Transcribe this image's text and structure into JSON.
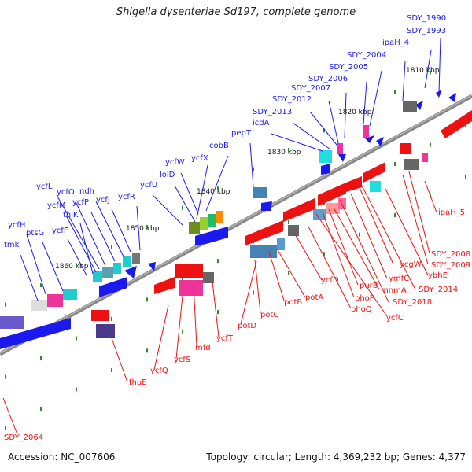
{
  "title": "Shigella dysenteriae Sd197, complete genome",
  "footer": {
    "accession": "Accession: NC_007606",
    "topology": "Topology: circular; Length: 4,369,232 bp; Genes: 4,377"
  },
  "colors": {
    "forward_gene": "#1a1aee",
    "reverse_gene": "#ee1111",
    "backbone": "#888888",
    "tick": "#2e8b2e"
  },
  "scale_labels": [
    "1810 kbp",
    "1820 kbp",
    "1830 kbp",
    "1840 kbp",
    "1850 kbp",
    "1860 kbp"
  ],
  "forward_labels": [
    "SDY_1990",
    "SDY_1993",
    "ipaH_4",
    "SDY_2004",
    "SDY_2005",
    "SDY_2006",
    "SDY_2007",
    "SDY_2012",
    "SDY_2013",
    "icdA",
    "pepT",
    "cobB",
    "ycfX",
    "ycfW",
    "lolD",
    "ycfU",
    "ycfR",
    "ycfJ",
    "ndh",
    "ycfP",
    "ycfO",
    "ycfL",
    "ycfM",
    "thiK",
    "ycfF",
    "ycfH",
    "ptsG",
    "tmk"
  ],
  "reverse_labels": [
    "ipaH_5",
    "SDY_2008",
    "SDY_2009",
    "ybhE",
    "SDY_2014",
    "ycgW",
    "ymfC",
    "SDY_2018",
    "mnmA",
    "purB",
    "phoP",
    "ycfC",
    "phoQ",
    "ycfD",
    "potA",
    "potB",
    "potC",
    "potD",
    "ycfT",
    "mfd",
    "ycfS",
    "ycfQ",
    "fhuE",
    "SDY_2064"
  ]
}
